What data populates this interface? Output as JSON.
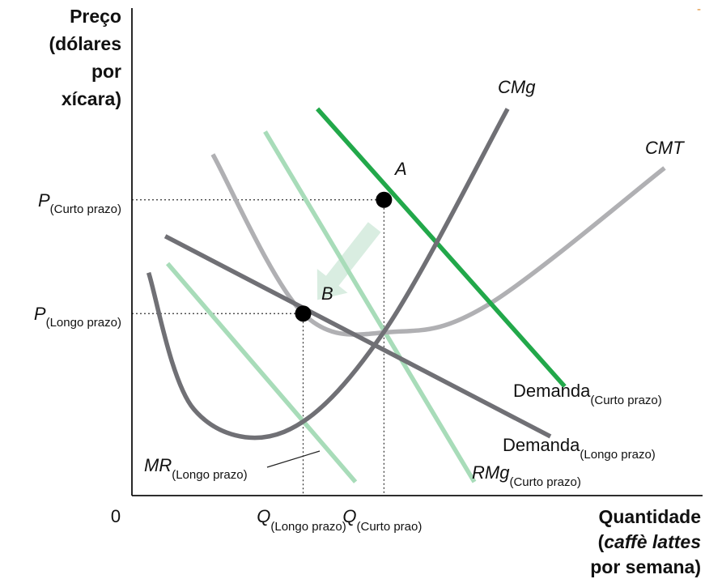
{
  "chart_data": {
    "type": "line",
    "title": "",
    "y_axis_title": [
      "Preço",
      "(dólares",
      "por",
      "xícara)"
    ],
    "x_axis_title": {
      "line1": "Quantidade",
      "line2_open": "(",
      "line2_italic": "caffè lattes",
      "line3": "por semana)"
    },
    "origin_label": "0",
    "y_ticks": [
      {
        "main": "P",
        "sub": "(Curto prazo)",
        "value": 6.5
      },
      {
        "main": "P",
        "sub": "(Longo prazo)",
        "value": 4.0
      }
    ],
    "x_ticks": [
      {
        "main": "Q",
        "sub": "(Longo prazo)",
        "value": 3.6
      },
      {
        "main": "Q",
        "sub": "(Curto prao)",
        "value": 5.3
      }
    ],
    "xlim": [
      0,
      12
    ],
    "ylim": [
      0,
      10.5
    ],
    "series": [
      {
        "name": "CMg",
        "color": "#707075",
        "kind": "curve",
        "points": [
          [
            0.35,
            4.9
          ],
          [
            1.3,
            1.9
          ],
          [
            3.2,
            1.4
          ],
          [
            5.3,
            3.6
          ],
          [
            7.9,
            8.5
          ]
        ]
      },
      {
        "name": "CMT",
        "color": "#b0b0b3",
        "kind": "curve",
        "points": [
          [
            1.7,
            7.5
          ],
          [
            3.6,
            4.0
          ],
          [
            5.5,
            3.6
          ],
          [
            7.5,
            4.2
          ],
          [
            11.2,
            7.2
          ]
        ]
      },
      {
        "name": "Demanda",
        "sub": "(Curto prazo)",
        "color": "#22a84a",
        "kind": "line",
        "points": [
          [
            3.9,
            8.5
          ],
          [
            9.1,
            2.4
          ]
        ]
      },
      {
        "name": "Demanda",
        "sub": "(Longo prazo)",
        "color": "#707075",
        "kind": "line",
        "points": [
          [
            0.7,
            5.7
          ],
          [
            8.8,
            1.3
          ]
        ]
      },
      {
        "name": "RMg",
        "sub": "(Curto prazo)",
        "color": "#a8dcb9",
        "kind": "line",
        "points": [
          [
            2.8,
            8.0
          ],
          [
            7.2,
            0.3
          ]
        ]
      },
      {
        "name": "MR",
        "sub": "(Longo prazo)",
        "color": "#a8dcb9",
        "kind": "line",
        "points": [
          [
            0.75,
            5.1
          ],
          [
            4.7,
            0.3
          ]
        ]
      }
    ],
    "points": [
      {
        "label": "A",
        "x": 5.3,
        "y": 6.5
      },
      {
        "label": "B",
        "x": 3.6,
        "y": 4.0
      }
    ],
    "shift_arrow": {
      "from": [
        5.1,
        5.9
      ],
      "to": [
        3.9,
        4.3
      ],
      "color": "#d9ede1"
    },
    "corner_mark": "-"
  }
}
